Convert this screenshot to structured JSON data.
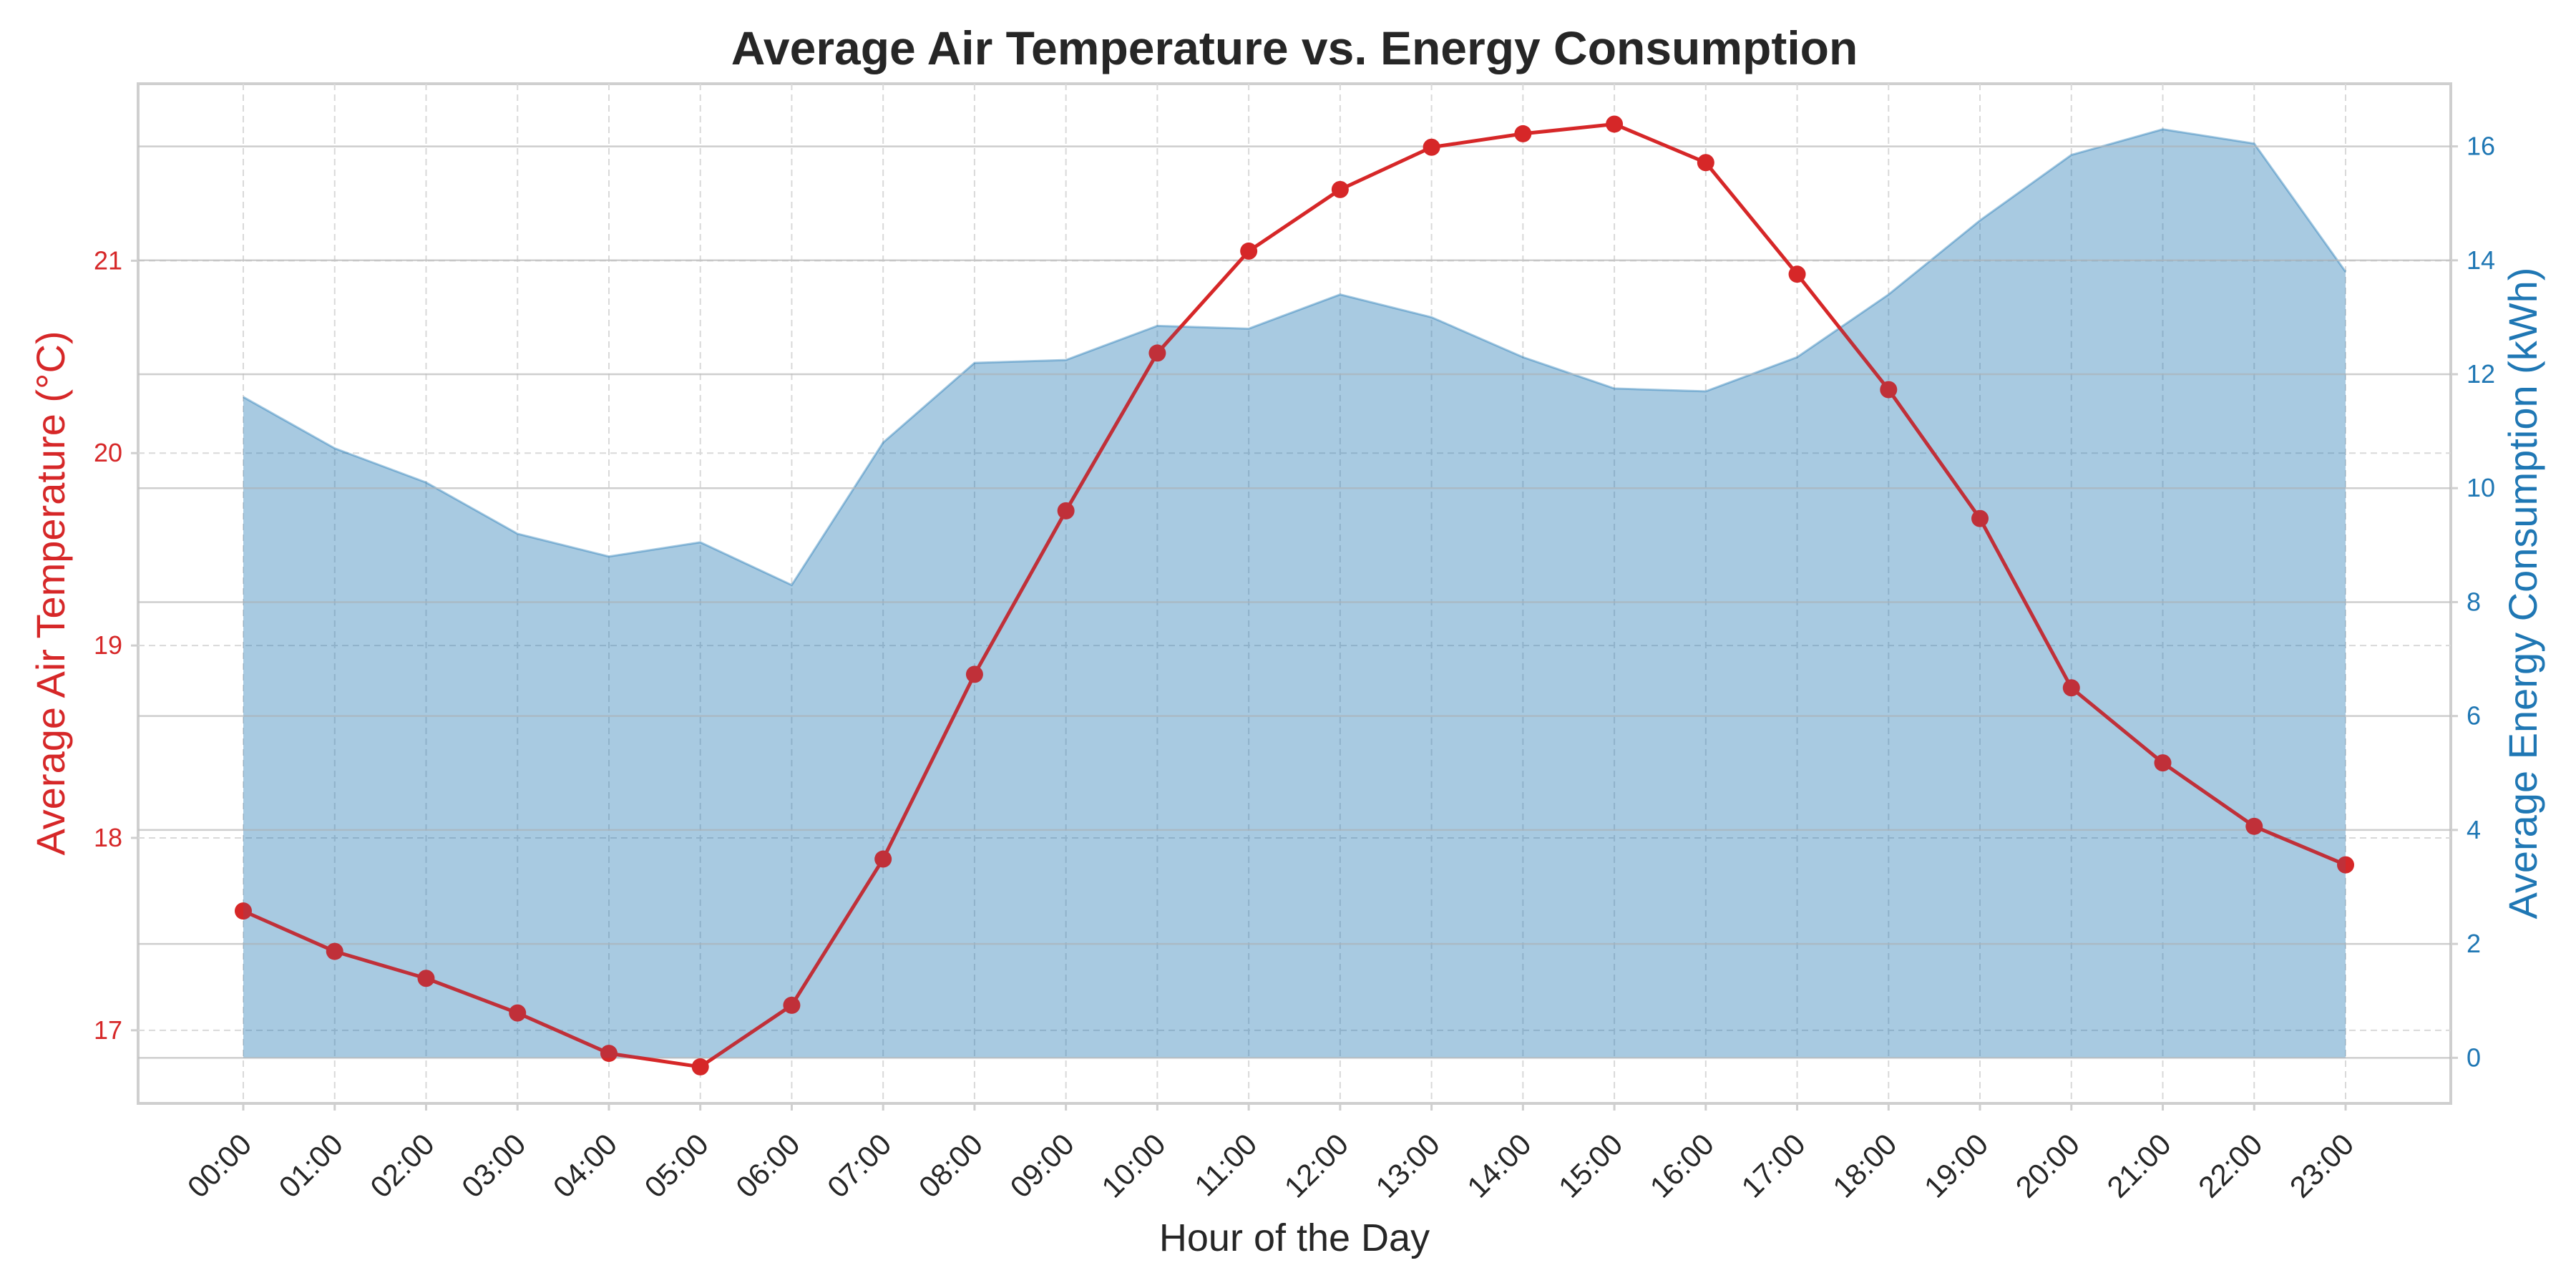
{
  "chart_data": {
    "type": "line+area",
    "title": "Average Air Temperature vs. Energy Consumption",
    "xlabel": "Hour of the Day",
    "ylabel_left": "Average Air Temperature (°C)",
    "ylabel_right": "Average Energy Consumption (kWh)",
    "categories": [
      "00:00",
      "01:00",
      "02:00",
      "03:00",
      "04:00",
      "05:00",
      "06:00",
      "07:00",
      "08:00",
      "09:00",
      "10:00",
      "11:00",
      "12:00",
      "13:00",
      "14:00",
      "15:00",
      "16:00",
      "17:00",
      "18:00",
      "19:00",
      "20:00",
      "21:00",
      "22:00",
      "23:00"
    ],
    "temperature": {
      "values": [
        17.62,
        17.41,
        17.27,
        17.09,
        16.88,
        16.81,
        17.13,
        17.89,
        18.85,
        19.7,
        20.52,
        21.05,
        21.37,
        21.59,
        21.66,
        21.71,
        21.51,
        20.93,
        20.33,
        19.66,
        18.78,
        18.39,
        18.06,
        17.86
      ],
      "color": "#d62728",
      "ylim": [
        16.62,
        21.92
      ],
      "ticks": [
        17,
        18,
        19,
        20,
        21
      ]
    },
    "energy": {
      "values": [
        11.6,
        10.7,
        10.1,
        9.2,
        8.8,
        9.05,
        8.3,
        10.8,
        12.2,
        12.25,
        12.85,
        12.8,
        13.4,
        13.0,
        12.3,
        11.75,
        11.7,
        12.3,
        13.4,
        14.7,
        15.85,
        16.3,
        16.05,
        13.8
      ],
      "color": "#1f77b4",
      "ylim": [
        -0.8,
        17.1
      ],
      "ticks": [
        0,
        2,
        4,
        6,
        8,
        10,
        12,
        14,
        16
      ]
    },
    "grid": true
  }
}
